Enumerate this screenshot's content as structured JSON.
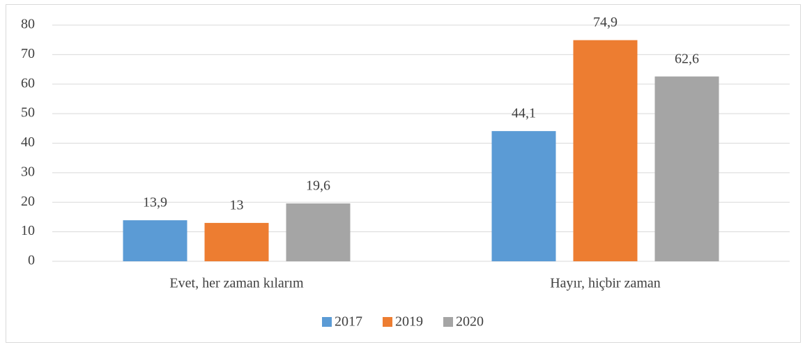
{
  "chart_data": {
    "type": "bar",
    "categories": [
      "Evet, her zaman kılarım",
      "Hayır, hiçbir zaman"
    ],
    "series": [
      {
        "name": "2017",
        "color": "#5b9bd5",
        "values": [
          13.9,
          44.1
        ],
        "value_labels": [
          "13,9",
          "44,1"
        ]
      },
      {
        "name": "2019",
        "color": "#ed7d31",
        "values": [
          13,
          74.9
        ],
        "value_labels": [
          "13",
          "74,9"
        ]
      },
      {
        "name": "2020",
        "color": "#a5a5a5",
        "values": [
          19.6,
          62.6
        ],
        "value_labels": [
          "19,6",
          "62,6"
        ]
      }
    ],
    "ylim": [
      0,
      80
    ],
    "yticks": [
      0,
      10,
      20,
      30,
      40,
      50,
      60,
      70,
      80
    ],
    "grid": true,
    "legend": "bottom"
  }
}
